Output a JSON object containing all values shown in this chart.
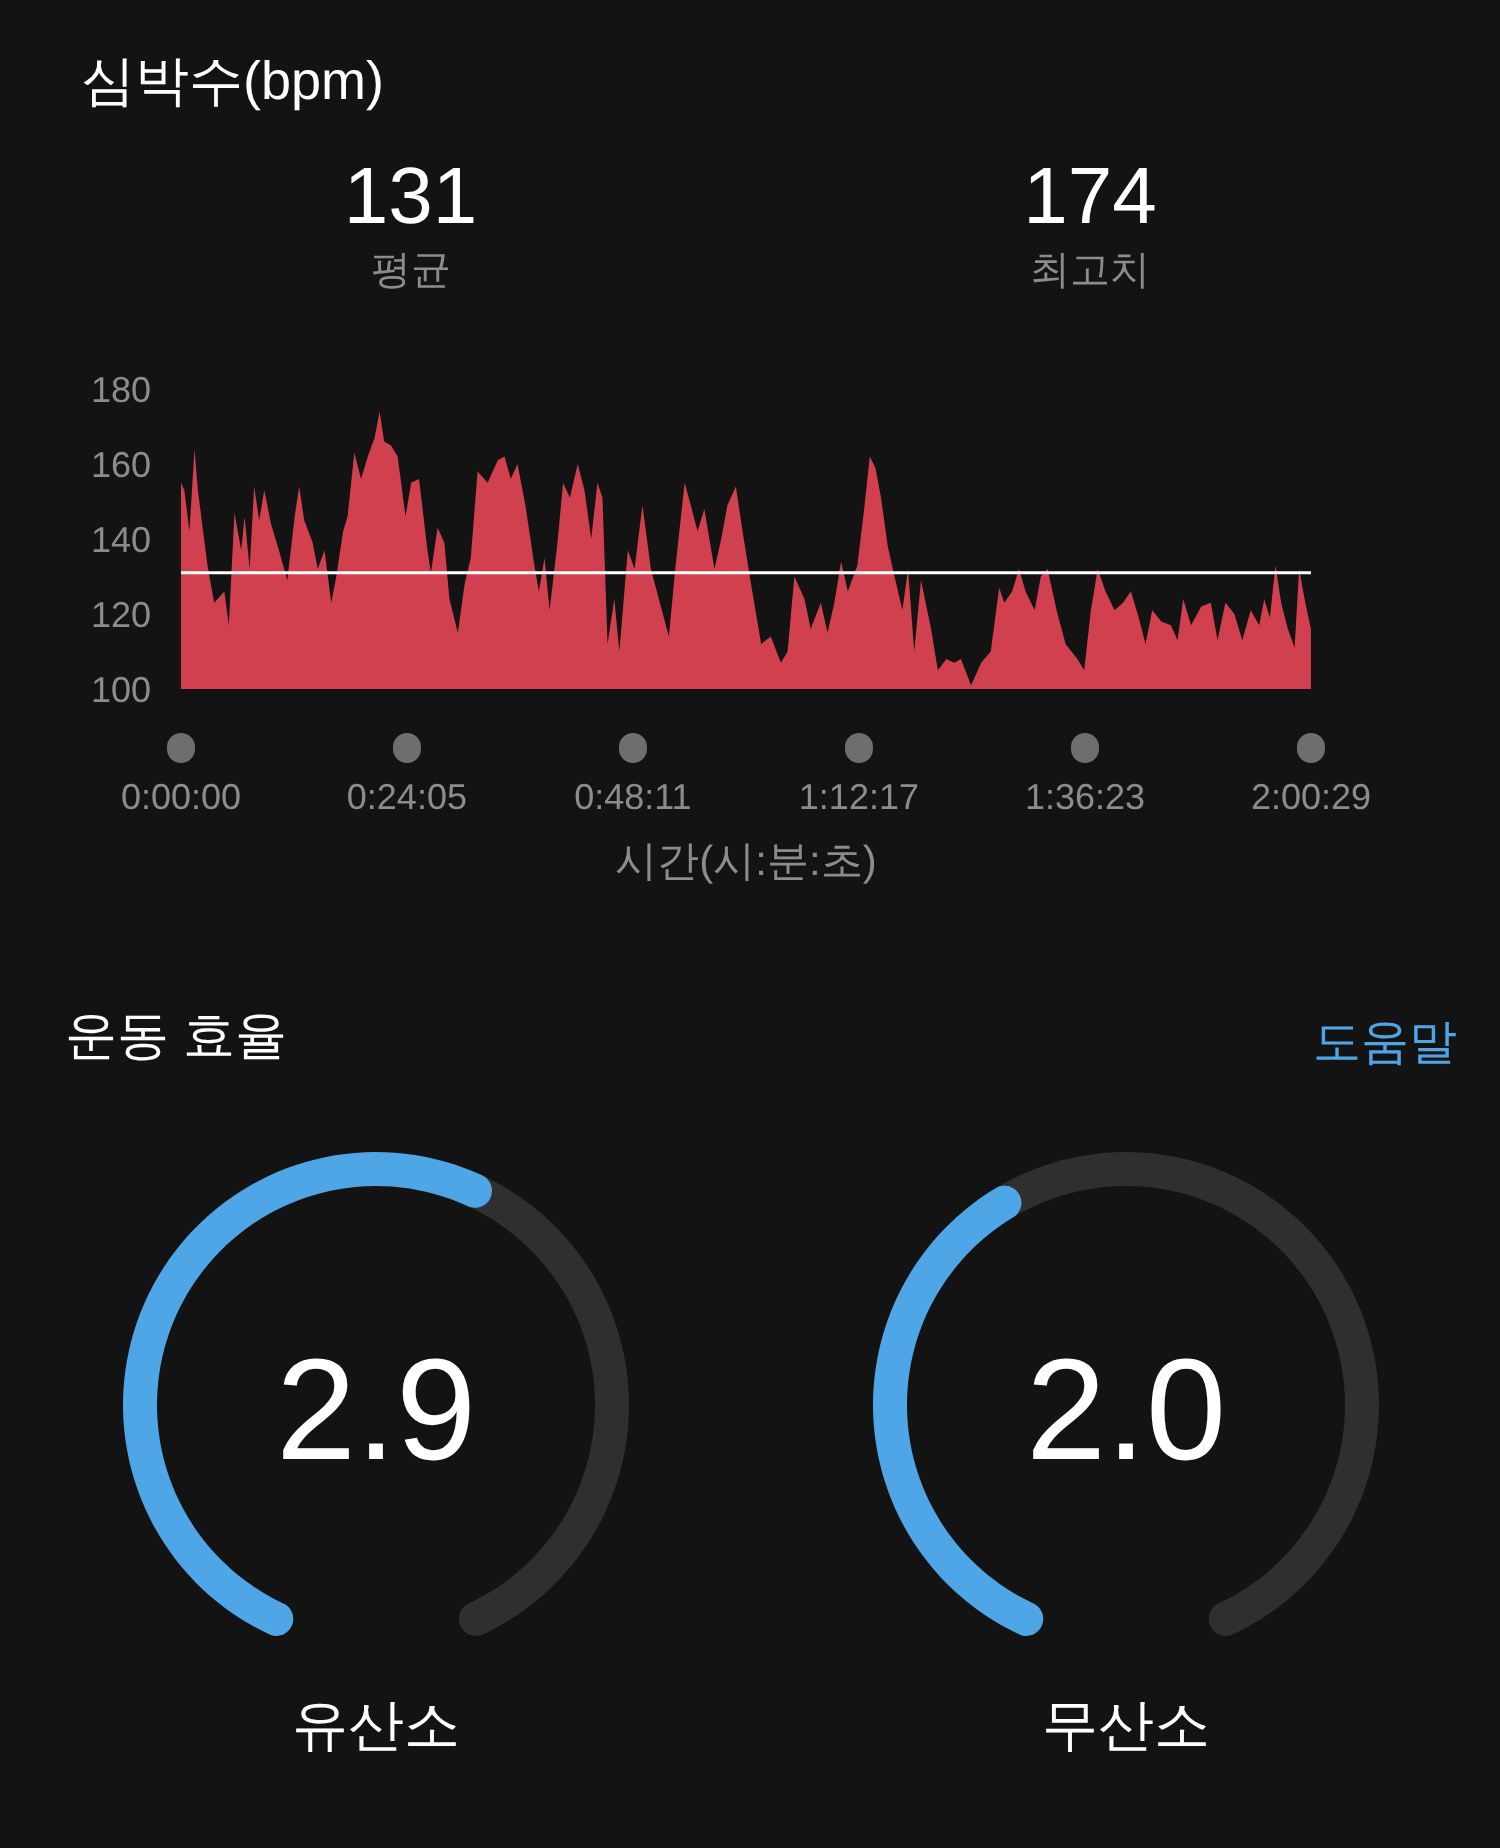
{
  "chart_data": [
    {
      "type": "area",
      "title": "심박수(bpm)",
      "annotations": [
        "131",
        "평균",
        "174",
        "최고치"
      ],
      "xlabel": "시간(시:분:초)",
      "color": "#d0404f",
      "x": [
        0,
        0.006,
        0.015,
        0.024,
        0.03,
        0.047,
        0.059,
        0.077,
        0.085,
        0.095,
        0.107,
        0.113,
        0.122,
        0.13,
        0.139,
        0.148,
        0.16,
        0.174,
        0.189,
        0.202,
        0.21,
        0.219,
        0.234,
        0.243,
        0.255,
        0.267,
        0.276,
        0.288,
        0.296,
        0.308,
        0.32,
        0.332,
        0.344,
        0.353,
        0.361,
        0.373,
        0.385,
        0.399,
        0.409,
        0.423,
        0.438,
        0.444,
        0.456,
        0.468,
        0.477,
        0.492,
        0.504,
        0.515,
        0.527,
        0.545,
        0.563,
        0.575,
        0.586,
        0.598,
        0.612,
        0.628,
        0.636,
        0.646,
        0.655,
        0.669,
        0.679,
        0.691,
        0.705,
        0.717,
        0.729,
        0.74,
        0.749,
        0.758,
        0.77,
        0.779,
        0.794,
        0.806,
        0.82,
        0.835,
        0.851,
        0.867,
        0.879,
        0.895,
        0.906,
        0.918,
        0.93,
        0.948,
        0.96,
        0.971,
        0.986,
        0.998,
        1.013,
        1.031,
        1.048,
        1.066,
        1.078,
        1.09,
        1.108,
        1.119,
        1.137,
        1.149,
        1.161,
        1.173,
        1.185,
        1.202,
        1.214,
        1.224,
        1.234,
        1.244,
        1.256,
        1.268,
        1.282,
        1.292,
        1.303,
        1.315,
        1.333,
        1.345,
        1.36,
        1.374,
        1.386,
        1.404,
        1.422,
        1.439,
        1.454,
        1.463,
        1.477,
        1.489,
        1.501,
        1.517,
        1.528,
        1.54,
        1.556,
        1.572,
        1.593,
        1.605,
        1.617,
        1.629,
        1.643,
        1.659,
        1.674,
        1.688,
        1.702,
        1.714,
        1.726,
        1.742,
        1.759,
        1.771,
        1.781,
        1.795,
        1.813,
        1.83,
        1.842,
        1.856,
        1.872,
        1.886,
        1.901,
        1.916,
        1.925,
        1.935,
        1.945,
        1.955,
        1.967,
        1.979,
        1.987,
        1.998,
        2.008
      ],
      "values": [
        155,
        153,
        142,
        164,
        153,
        133,
        123,
        126,
        117,
        147,
        137,
        146,
        132,
        154,
        145,
        153,
        144,
        137,
        129,
        146,
        154,
        145,
        139,
        132,
        137,
        123,
        130,
        142,
        146,
        163,
        156,
        162,
        167,
        174,
        166,
        165,
        162,
        146,
        155,
        156,
        137,
        131,
        143,
        139,
        124,
        115,
        128,
        135,
        158,
        155,
        161,
        162,
        156,
        160,
        149,
        133,
        126,
        135,
        121,
        139,
        155,
        151,
        160,
        153,
        140,
        155,
        151,
        112,
        124,
        110,
        137,
        132,
        149,
        132,
        123,
        114,
        133,
        155,
        149,
        142,
        148,
        132,
        140,
        149,
        154,
        142,
        128,
        112,
        114,
        107,
        110,
        130,
        124,
        116,
        123,
        115,
        123,
        134,
        126,
        133,
        148,
        162,
        159,
        151,
        138,
        130,
        121,
        132,
        110,
        129,
        116,
        105,
        108,
        107,
        108,
        101,
        107,
        110,
        127,
        123,
        126,
        132,
        126,
        121,
        130,
        132,
        121,
        112,
        108,
        105,
        121,
        132,
        126,
        121,
        123,
        126,
        119,
        112,
        121,
        118,
        117,
        113,
        124,
        117,
        122,
        123,
        113,
        123,
        120,
        113,
        121,
        117,
        124,
        119,
        133,
        123,
        116,
        111,
        132,
        123,
        116
      ],
      "xlim": [
        0,
        2.0081
      ],
      "xticks": [
        {
          "value": 0,
          "label": "0:00:00"
        },
        {
          "value": 0.4014,
          "label": "0:24:05"
        },
        {
          "value": 0.8031,
          "label": "0:48:11"
        },
        {
          "value": 1.2047,
          "label": "1:12:17"
        },
        {
          "value": 1.6064,
          "label": "1:36:23"
        },
        {
          "value": 2.0081,
          "label": "2:00:29"
        }
      ],
      "ylim": [
        100,
        180
      ],
      "yticks": [
        100,
        120,
        140,
        160,
        180
      ],
      "ref_lines": [
        {
          "axis": "y",
          "value": 131,
          "color": "#ffffff"
        }
      ]
    },
    {
      "type": "other",
      "title": "운동 효율",
      "annotations": [
        "도움말"
      ]
    },
    {
      "type": "donut",
      "title": "유산소",
      "categories": [
        null,
        null
      ],
      "values": [
        2.9,
        2.1
      ],
      "colors": [
        "#4ea6e6",
        "#2f2f2f"
      ],
      "value_labels": [
        "2.9",
        null
      ]
    },
    {
      "type": "donut",
      "title": "무산소",
      "categories": [
        null,
        null
      ],
      "values": [
        2.0,
        3.0
      ],
      "colors": [
        "#4ea6e6",
        "#2f2f2f"
      ],
      "value_labels": [
        "2.0",
        null
      ]
    }
  ]
}
